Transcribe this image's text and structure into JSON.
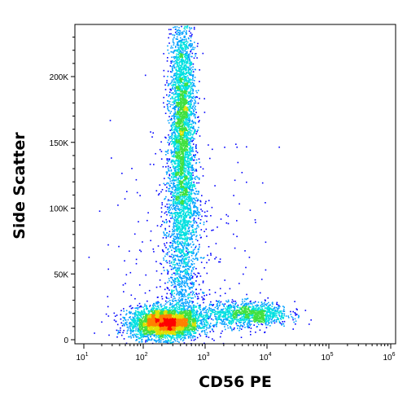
{
  "chart_data": {
    "type": "scatter",
    "title": "",
    "xlabel": "CD56 PE",
    "ylabel": "Side Scatter",
    "x_scale": "log",
    "xlim": [
      10,
      1000000
    ],
    "ylim": [
      0,
      240000
    ],
    "x_ticks": [
      {
        "value": 10,
        "base": "10",
        "exp": "1"
      },
      {
        "value": 100,
        "base": "10",
        "exp": "2"
      },
      {
        "value": 1000,
        "base": "10",
        "exp": "3"
      },
      {
        "value": 10000,
        "base": "10",
        "exp": "4"
      },
      {
        "value": 100000,
        "base": "10",
        "exp": "5"
      },
      {
        "value": 1000000,
        "base": "10",
        "exp": "6"
      }
    ],
    "y_ticks": [
      {
        "value": 0,
        "label": "0"
      },
      {
        "value": 50000,
        "label": "50K"
      },
      {
        "value": 100000,
        "label": "100K"
      },
      {
        "value": 150000,
        "label": "150K"
      },
      {
        "value": 200000,
        "label": "200K"
      }
    ],
    "grid": false,
    "legend": "none",
    "colormap": [
      "#0000ff",
      "#00a0ff",
      "#00e0e0",
      "#40e040",
      "#e0e000",
      "#ff8000",
      "#ff0000"
    ],
    "populations": [
      {
        "center_x": 220,
        "center_y": 13000,
        "spread_log_x": 0.28,
        "spread_y": 6000,
        "density": "high"
      },
      {
        "center_x": 420,
        "center_y": 170000,
        "spread_log_x": 0.1,
        "spread_y": 40000,
        "density": "high"
      },
      {
        "center_x": 6000,
        "center_y": 20000,
        "spread_log_x": 0.28,
        "spread_y": 4500,
        "density": "medium"
      }
    ]
  }
}
